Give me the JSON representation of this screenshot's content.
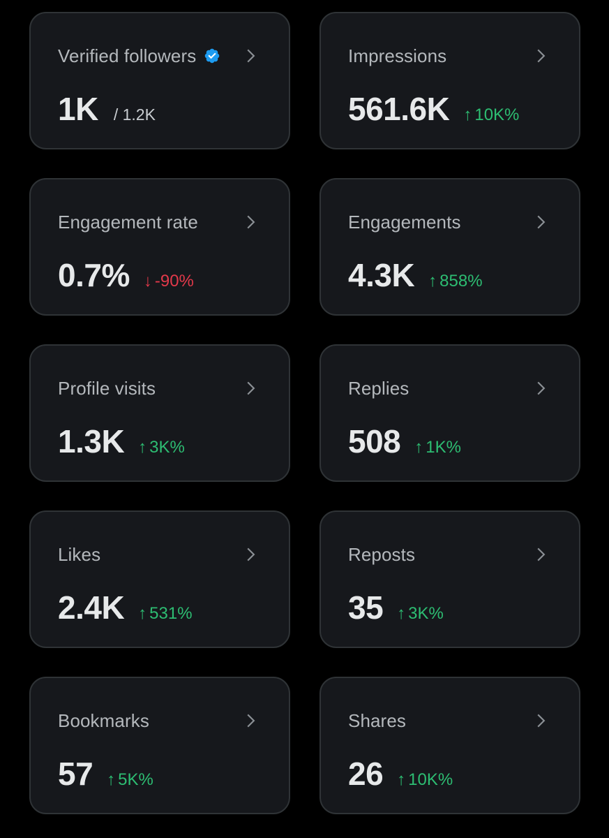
{
  "colors": {
    "background": "#000000",
    "card_background": "#16181c",
    "card_border": "#2f3336",
    "title_text": "#b4b8bc",
    "value_text": "#e7e9ea",
    "positive_change": "#2dbd72",
    "negative_change": "#e2394a",
    "verified_badge": "#1d9bf0"
  },
  "icons": {
    "verified": "verified-badge-icon",
    "chevron": "chevron-right-icon",
    "arrow_up": "↑",
    "arrow_down": "↓"
  },
  "cards": [
    {
      "title": "Verified followers",
      "value": "1K",
      "sub": "/ 1.2K",
      "verified": true
    },
    {
      "title": "Impressions",
      "value": "561.6K",
      "change": "10K%",
      "direction": "up"
    },
    {
      "title": "Engagement rate",
      "value": "0.7%",
      "change": "-90%",
      "direction": "down"
    },
    {
      "title": "Engagements",
      "value": "4.3K",
      "change": "858%",
      "direction": "up"
    },
    {
      "title": "Profile visits",
      "value": "1.3K",
      "change": "3K%",
      "direction": "up"
    },
    {
      "title": "Replies",
      "value": "508",
      "change": "1K%",
      "direction": "up"
    },
    {
      "title": "Likes",
      "value": "2.4K",
      "change": "531%",
      "direction": "up"
    },
    {
      "title": "Reposts",
      "value": "35",
      "change": "3K%",
      "direction": "up"
    },
    {
      "title": "Bookmarks",
      "value": "57",
      "change": "5K%",
      "direction": "up"
    },
    {
      "title": "Shares",
      "value": "26",
      "change": "10K%",
      "direction": "up"
    }
  ]
}
